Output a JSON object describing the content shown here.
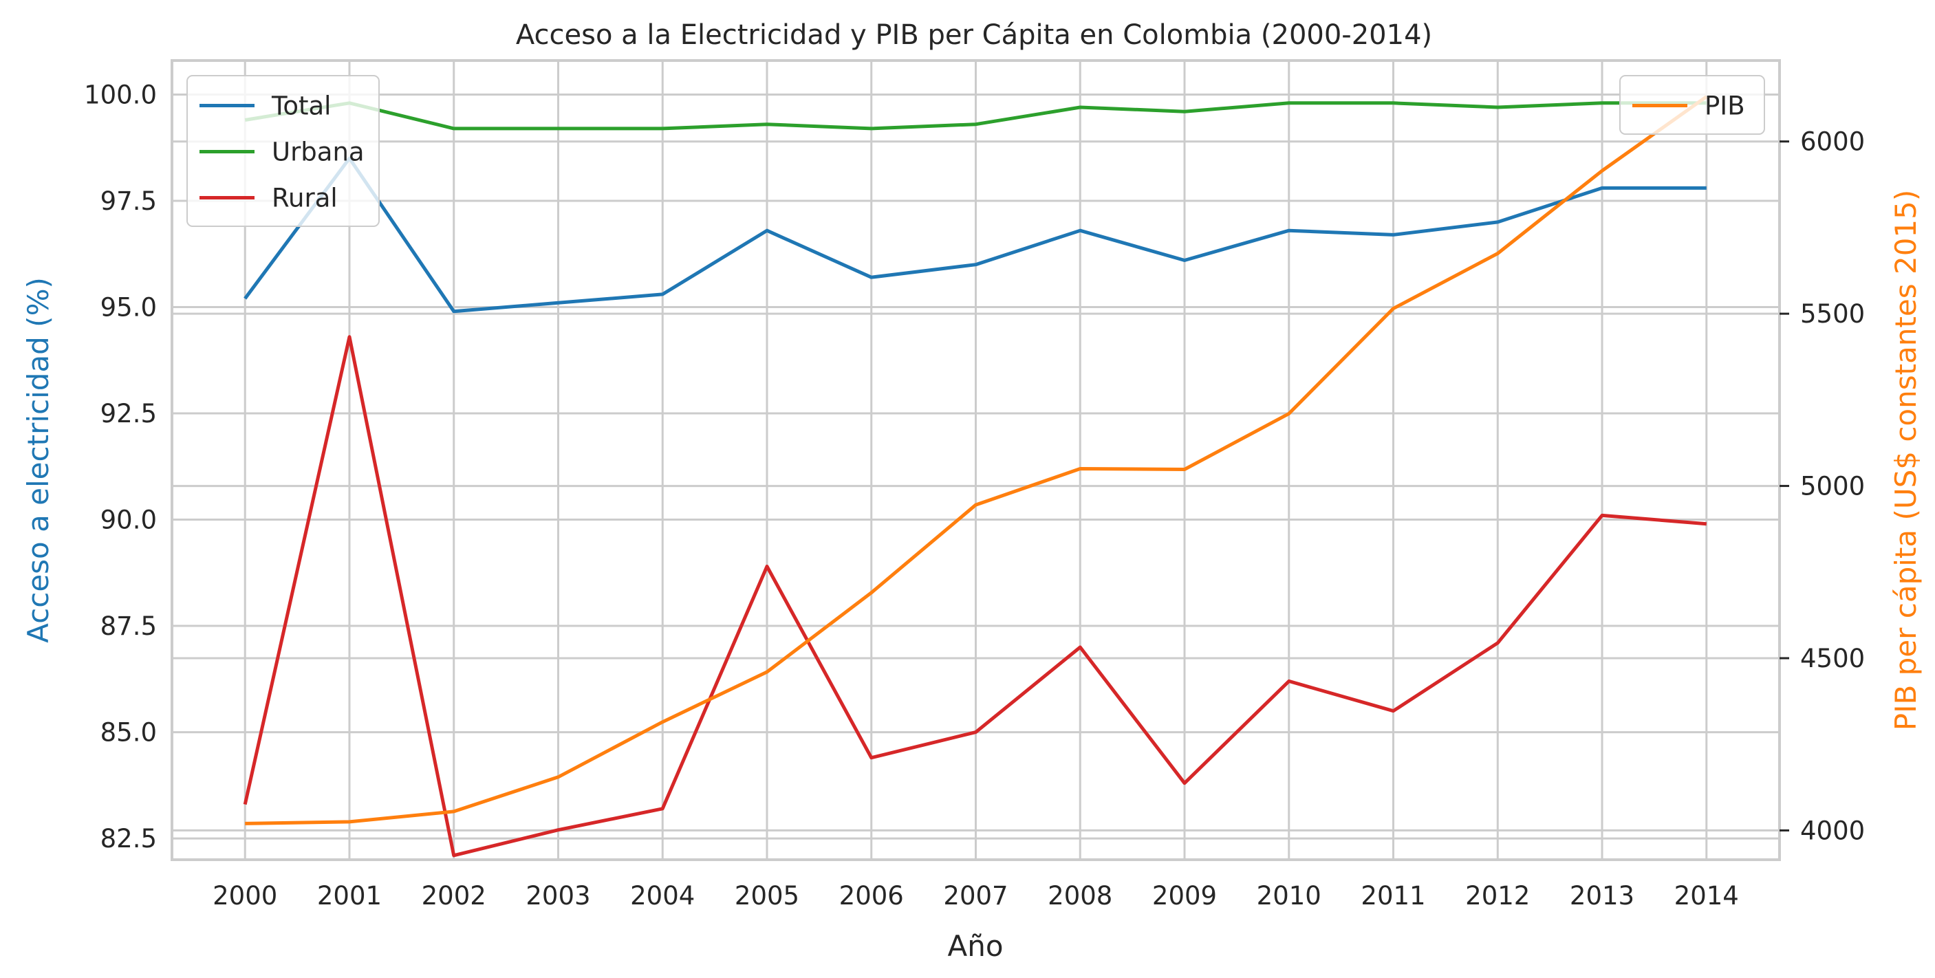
{
  "chart_data": {
    "type": "line",
    "title": "Acceso a la Electricidad y PIB per Cápita en Colombia (2000-2014)",
    "xlabel": "Año",
    "ylabel_left": "Acceso a electricidad (%)",
    "ylabel_right": "PIB per cápita (US$ constantes 2015)",
    "x": [
      2000,
      2001,
      2002,
      2003,
      2004,
      2005,
      2006,
      2007,
      2008,
      2009,
      2010,
      2011,
      2012,
      2013,
      2014
    ],
    "ylim_left": [
      82.0,
      100.8
    ],
    "ylim_right": [
      3915,
      6235
    ],
    "yticks_left": [
      "82.5",
      "85.0",
      "87.5",
      "90.0",
      "92.5",
      "95.0",
      "97.5",
      "100.0"
    ],
    "yticks_right": [
      "4000",
      "4500",
      "5000",
      "5500",
      "6000"
    ],
    "grid": true,
    "legend_left": {
      "placement": "top-left",
      "entries": [
        "Total",
        "Urbana",
        "Rural"
      ]
    },
    "legend_right": {
      "placement": "top-right",
      "entries": [
        "PIB"
      ]
    },
    "series": [
      {
        "name": "Total",
        "axis": "left",
        "color": "#1f77b4",
        "values": [
          95.2,
          98.5,
          94.9,
          95.1,
          95.3,
          96.8,
          95.7,
          96.0,
          96.8,
          96.1,
          96.8,
          96.7,
          97.0,
          97.8,
          97.8
        ]
      },
      {
        "name": "Urbana",
        "axis": "left",
        "color": "#2ca02c",
        "values": [
          99.4,
          99.8,
          99.2,
          99.2,
          99.2,
          99.3,
          99.2,
          99.3,
          99.7,
          99.6,
          99.8,
          99.8,
          99.7,
          99.8,
          99.8
        ]
      },
      {
        "name": "Rural",
        "axis": "left",
        "color": "#d62728",
        "values": [
          83.3,
          94.3,
          82.1,
          82.7,
          83.2,
          88.9,
          84.4,
          85.0,
          87.0,
          83.8,
          86.2,
          85.5,
          87.1,
          90.1,
          89.9
        ]
      },
      {
        "name": "PIB",
        "axis": "right",
        "color": "#ff7f0e",
        "values": [
          4020,
          4025,
          4055,
          4155,
          4315,
          4460,
          4690,
          4945,
          5050,
          5048,
          5210,
          5515,
          5675,
          5915,
          6130
        ]
      }
    ],
    "axis_label_colors": {
      "left": "#1f77b4",
      "right": "#ff7f0e"
    }
  }
}
